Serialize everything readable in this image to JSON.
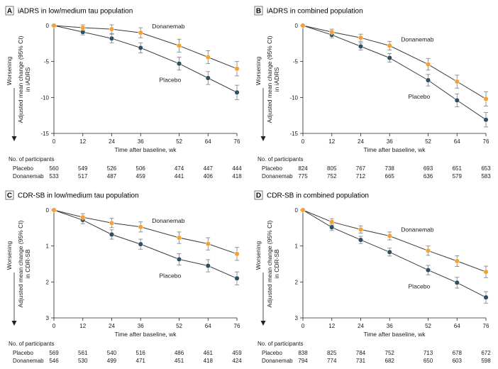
{
  "colors": {
    "placebo": "#2f4f5f",
    "donanemab": "#f5a030",
    "line": "#3a3a3a",
    "errorbar": "#7a7a7a"
  },
  "common": {
    "xlabel": "Time after baseline, wk",
    "worsening": "Worsening",
    "participants_header": "No. of participants",
    "row_placebo": "Placebo",
    "row_donanemab": "Donanemab"
  },
  "chart_data": [
    {
      "type": "line",
      "letter": "A",
      "title": "iADRS in low/medium tau population",
      "ylabel": [
        "Adjusted mean change (95% CI)",
        "in iADRS"
      ],
      "x": [
        0,
        12,
        24,
        36,
        52,
        64,
        76
      ],
      "xlim": [
        0,
        76
      ],
      "ylim": [
        -15,
        0
      ],
      "yticks": [
        0,
        -5,
        -10,
        -15
      ],
      "ytick_labels": [
        "0",
        "-5",
        "-10",
        "-15"
      ],
      "series": [
        {
          "name": "Placebo",
          "values": [
            0,
            -0.9,
            -1.8,
            -3.1,
            -5.3,
            -7.3,
            -9.3
          ],
          "ci": [
            0,
            0.4,
            0.6,
            0.7,
            0.9,
            0.9,
            1.0
          ]
        },
        {
          "name": "Donanemab",
          "values": [
            0,
            -0.3,
            -0.5,
            -1.0,
            -2.8,
            -4.4,
            -6.0
          ],
          "ci": [
            0,
            0.4,
            0.6,
            0.7,
            0.9,
            0.9,
            1.0
          ]
        }
      ],
      "participants": {
        "placebo": [
          "560",
          "549",
          "526",
          "506",
          "474",
          "447",
          "444"
        ],
        "donanemab": [
          "533",
          "517",
          "487",
          "459",
          "441",
          "406",
          "418"
        ]
      }
    },
    {
      "type": "line",
      "letter": "B",
      "title": "iADRS in combined population",
      "ylabel": [
        "Adjusted mean change (95% CI)",
        "in iADRS"
      ],
      "x": [
        0,
        12,
        24,
        36,
        52,
        64,
        76
      ],
      "xlim": [
        0,
        76
      ],
      "ylim": [
        -15,
        0
      ],
      "yticks": [
        0,
        -5,
        -10,
        -15
      ],
      "ytick_labels": [
        "0",
        "-5",
        "-10",
        "-15"
      ],
      "series": [
        {
          "name": "Placebo",
          "values": [
            0,
            -1.3,
            -2.9,
            -4.5,
            -7.6,
            -10.4,
            -13.1
          ],
          "ci": [
            0,
            0.4,
            0.5,
            0.6,
            0.8,
            0.9,
            1.0
          ]
        },
        {
          "name": "Donanemab",
          "values": [
            0,
            -0.9,
            -1.7,
            -2.8,
            -5.4,
            -7.8,
            -10.2
          ],
          "ci": [
            0,
            0.4,
            0.5,
            0.6,
            0.8,
            0.9,
            1.0
          ]
        }
      ],
      "participants": {
        "placebo": [
          "824",
          "805",
          "767",
          "738",
          "693",
          "651",
          "653"
        ],
        "donanemab": [
          "775",
          "752",
          "712",
          "665",
          "636",
          "579",
          "583"
        ]
      }
    },
    {
      "type": "line",
      "letter": "C",
      "title": "CDR-SB in low/medium tau population",
      "ylabel": [
        "Adjusted mean change (95% CI)",
        "in CDR-SB"
      ],
      "x": [
        0,
        12,
        24,
        36,
        52,
        64,
        76
      ],
      "xlim": [
        0,
        76
      ],
      "ylim": [
        3,
        0
      ],
      "yticks": [
        0,
        1,
        2,
        3
      ],
      "ytick_labels": [
        "0",
        "1",
        "2",
        "3"
      ],
      "series": [
        {
          "name": "Placebo",
          "values": [
            0,
            0.28,
            0.68,
            0.95,
            1.37,
            1.55,
            1.9
          ],
          "ci": [
            0,
            0.1,
            0.13,
            0.14,
            0.16,
            0.17,
            0.18
          ]
        },
        {
          "name": "Donanemab",
          "values": [
            0,
            0.2,
            0.36,
            0.47,
            0.77,
            0.94,
            1.22
          ],
          "ci": [
            0,
            0.1,
            0.13,
            0.14,
            0.16,
            0.17,
            0.18
          ]
        }
      ],
      "participants": {
        "placebo": [
          "569",
          "561",
          "540",
          "516",
          "486",
          "461",
          "459"
        ],
        "donanemab": [
          "546",
          "530",
          "499",
          "471",
          "451",
          "418",
          "424"
        ]
      }
    },
    {
      "type": "line",
      "letter": "D",
      "title": "CDR-SB in combined population",
      "ylabel": [
        "Adjusted mean change (95% CI)",
        "in CDR-SB"
      ],
      "x": [
        0,
        12,
        24,
        36,
        52,
        64,
        76
      ],
      "xlim": [
        0,
        76
      ],
      "ylim": [
        3,
        0
      ],
      "yticks": [
        0,
        1,
        2,
        3
      ],
      "ytick_labels": [
        "0",
        "1",
        "2",
        "3"
      ],
      "series": [
        {
          "name": "Placebo",
          "values": [
            0,
            0.48,
            0.83,
            1.17,
            1.67,
            2.02,
            2.43
          ],
          "ci": [
            0,
            0.09,
            0.1,
            0.11,
            0.13,
            0.15,
            0.16
          ]
        },
        {
          "name": "Donanemab",
          "values": [
            0,
            0.33,
            0.54,
            0.72,
            1.13,
            1.42,
            1.72
          ],
          "ci": [
            0,
            0.09,
            0.1,
            0.11,
            0.13,
            0.15,
            0.16
          ]
        }
      ],
      "participants": {
        "placebo": [
          "838",
          "825",
          "784",
          "752",
          "713",
          "678",
          "672"
        ],
        "donanemab": [
          "794",
          "774",
          "731",
          "682",
          "650",
          "603",
          "598"
        ]
      }
    }
  ]
}
